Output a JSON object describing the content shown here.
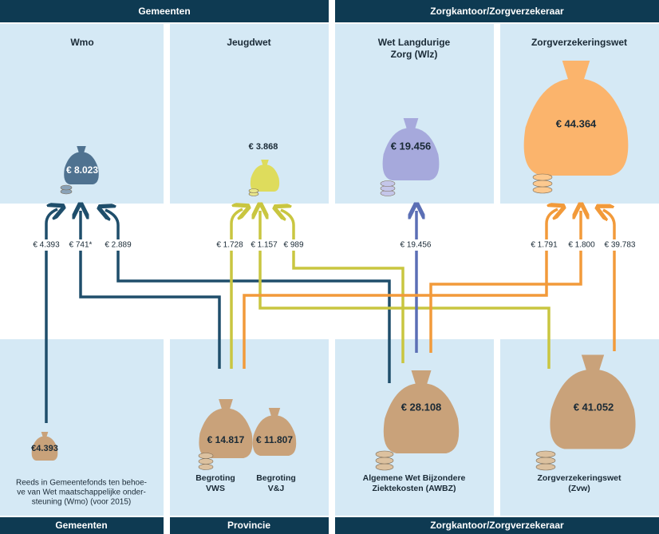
{
  "headers": {
    "top": [
      "Gemeenten",
      "Zorgkantoor/Zorgverzekeraar"
    ],
    "bottom": [
      "Gemeenten",
      "Provincie",
      "Zorgkantoor/Zorgverzekeraar"
    ]
  },
  "columns": [
    {
      "title": [
        "Wmo"
      ],
      "amount": "€ 8.023"
    },
    {
      "title": [
        "Jeugdwet"
      ],
      "amount": "€ 3.868"
    },
    {
      "title": [
        "Wet Langdurige",
        "Zorg (Wlz)"
      ],
      "amount": "€ 19.456"
    },
    {
      "title": [
        "Zorgverzekeringswet"
      ],
      "amount": "€ 44.364"
    }
  ],
  "flows": [
    "€ 4.393",
    "€ 741*",
    "€ 2.889",
    "€ 1.728",
    "€ 1.157",
    "€ 989",
    "€ 19.456",
    "€ 1.791",
    "€ 1.800",
    "€ 39.783"
  ],
  "sources": [
    {
      "amount": "€4.393",
      "caption": [
        "Reeds in Gemeentefonds ten behoe-",
        "ve van Wet maatschappelijke onder-",
        "steuning (Wmo) (voor 2015)"
      ]
    },
    {
      "amount": "€ 14.817",
      "caption": [
        "Begroting",
        "VWS"
      ]
    },
    {
      "amount": "€ 11.807",
      "caption": [
        "Begroting",
        "V&J"
      ]
    },
    {
      "amount": "€ 28.108",
      "caption": [
        "Algemene Wet Bijzondere",
        "Ziektekosten (AWBZ)"
      ]
    },
    {
      "amount": "€ 41.052",
      "caption": [
        "Zorgverzekeringswet",
        "(Zvw)"
      ]
    }
  ]
}
